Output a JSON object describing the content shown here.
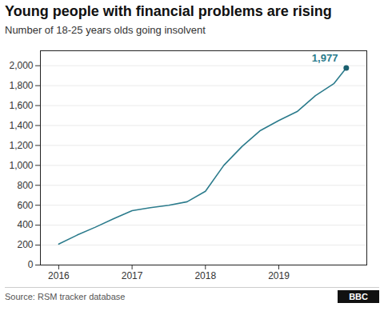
{
  "chart_data": {
    "type": "line",
    "title": "Young people with financial problems are rising",
    "subtitle": "Number of 18-25 years olds going insolvent",
    "source": "Source: RSM tracker database",
    "logo": "BBC",
    "x": [
      2016.0,
      2016.25,
      2016.5,
      2016.75,
      2017.0,
      2017.25,
      2017.5,
      2017.75,
      2018.0,
      2018.25,
      2018.5,
      2018.75,
      2019.0,
      2019.25,
      2019.5,
      2019.75,
      2019.92
    ],
    "values": [
      210,
      300,
      380,
      465,
      545,
      575,
      600,
      635,
      740,
      1000,
      1190,
      1350,
      1450,
      1540,
      1700,
      1820,
      1977
    ],
    "color": "#2B7B8C",
    "annotations": [
      {
        "text": "1,977",
        "x": 2019.92,
        "y": 1977,
        "color": "#2B7B8C",
        "marker": "dot",
        "marker_color": "#1a5f6e"
      }
    ],
    "xlim": [
      2015.75,
      2020.2
    ],
    "xticks": [
      2016,
      2017,
      2018,
      2019
    ],
    "ylim": [
      0,
      2150
    ],
    "yticks": [
      0,
      200,
      400,
      600,
      800,
      {
        "value": 1000,
        "label": "1,000"
      },
      {
        "value": 1200,
        "label": "1,200"
      },
      {
        "value": 1400,
        "label": "1,400"
      },
      {
        "value": 1600,
        "label": "1,600"
      },
      {
        "value": 1800,
        "label": "1,800"
      },
      {
        "value": 2000,
        "label": "2,000"
      }
    ],
    "grid": true
  }
}
